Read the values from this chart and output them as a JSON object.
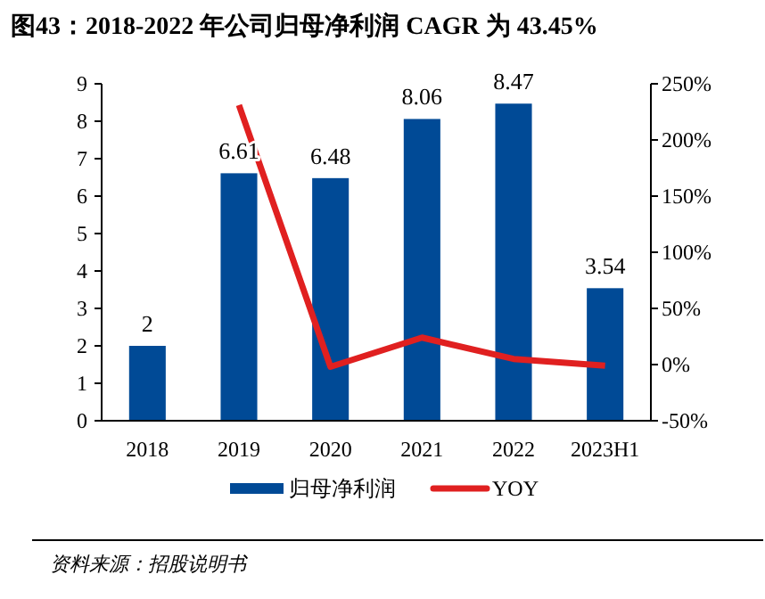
{
  "chart_data": {
    "type": "bar",
    "title": "图43：2018-2022 年公司归母净利润 CAGR 为 43.45%",
    "categories": [
      "2018",
      "2019",
      "2020",
      "2021",
      "2022",
      "2023H1"
    ],
    "series": [
      {
        "name": "归母净利润",
        "color": "#004a96",
        "values": [
          2,
          6.61,
          6.48,
          8.06,
          8.47,
          3.54
        ],
        "value_labels": [
          "2",
          "6.61",
          "6.48",
          "8.06",
          "8.47",
          "3.54"
        ]
      },
      {
        "name": "YOY",
        "type": "line",
        "axis": "y2",
        "color": "#e02020",
        "values": [
          null,
          231,
          -2,
          24,
          5,
          -1
        ]
      }
    ],
    "ylim": [
      0,
      9
    ],
    "yticks": [
      0,
      1,
      2,
      3,
      4,
      5,
      6,
      7,
      8,
      9
    ],
    "y2lim": [
      -50,
      250
    ],
    "y2ticks": [
      {
        "value": -50,
        "label": "-50%"
      },
      {
        "value": 0,
        "label": "0%"
      },
      {
        "value": 50,
        "label": "50%"
      },
      {
        "value": 100,
        "label": "100%"
      },
      {
        "value": 150,
        "label": "150%"
      },
      {
        "value": 200,
        "label": "200%"
      },
      {
        "value": 250,
        "label": "250%"
      }
    ],
    "legend": "bottom",
    "grid": false,
    "annotations": [
      "资料来源：招股说明书"
    ]
  }
}
